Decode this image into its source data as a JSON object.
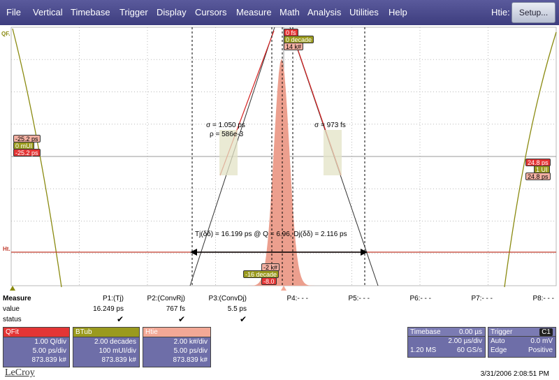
{
  "menu": {
    "items": [
      "File",
      "Vertical",
      "Timebase",
      "Trigger",
      "Display",
      "Cursors",
      "Measure",
      "Math",
      "Analysis",
      "Utilities",
      "Help"
    ],
    "right_label": "Htie:",
    "setup_button": "Setup..."
  },
  "plot": {
    "left_marker": "QF.",
    "ht_marker": "Ht.",
    "top_tags": [
      "0 fs",
      "0 decade",
      "14 k#"
    ],
    "bottom_tags": [
      "-2 k#",
      "-16 decade",
      "-8.0"
    ],
    "left_tags": [
      "-25.2 ps",
      "0 mUI",
      "-25.2 ps"
    ],
    "right_tags": [
      "24.8 ps",
      "1 UI",
      "24.8 ps"
    ],
    "sigma_left": "σ = 1.050 ps",
    "rho_left": "ρ = 586e-3",
    "sigma_right": "σ = 973 fs",
    "tj_text": "Tj(δδ) = 16.199 ps @ Q = 6.96,  Dj(δδ) = 2.116 ps",
    "colors": {
      "grid": "#b9b9b9",
      "histogram": "#ec9f8e",
      "fit_red": "#d42020",
      "olive": "#8a8a10",
      "ht_line": "#c0392b"
    }
  },
  "measure": {
    "title": "Measure",
    "row_labels": [
      "value",
      "status"
    ],
    "params": [
      {
        "name": "P1:(Tj)",
        "value": "16.249 ps",
        "status": "✔"
      },
      {
        "name": "P2:(ConvRj)",
        "value": "767 fs",
        "status": "✔"
      },
      {
        "name": "P3:(ConvDj)",
        "value": "5.5 ps",
        "status": "✔"
      },
      {
        "name": "P4:- - -",
        "value": "",
        "status": ""
      },
      {
        "name": "P5:- - -",
        "value": "",
        "status": ""
      },
      {
        "name": "P6:- - -",
        "value": "",
        "status": ""
      },
      {
        "name": "P7:- - -",
        "value": "",
        "status": ""
      },
      {
        "name": "P8:- - -",
        "value": "",
        "status": ""
      }
    ]
  },
  "traces": [
    {
      "name": "QFit",
      "color": "#e33535",
      "rows": [
        "1.00 Q/div",
        "5.00 ps/div",
        "873.839 k#"
      ]
    },
    {
      "name": "BTub",
      "color": "#9a9a1e",
      "rows": [
        "2.00 decades",
        "100 mUI/div",
        "873.839 k#"
      ]
    },
    {
      "name": "Htie",
      "color": "#f2a896",
      "rows": [
        "2.00 k#/div",
        "5.00 ps/div",
        "873.839 k#"
      ]
    }
  ],
  "timebase": {
    "title": "Timebase",
    "delay": "0.00 µs",
    "per_div": "2.00 µs/div",
    "samples": "1.20 MS",
    "rate": "60 GS/s"
  },
  "trigger": {
    "title": "Trigger",
    "channel": "C1",
    "mode": "Auto",
    "level": "0.0 mV",
    "type": "Edge",
    "slope": "Positive"
  },
  "logo": "LeCroy",
  "datetime": "3/31/2006 2:08:51 PM"
}
